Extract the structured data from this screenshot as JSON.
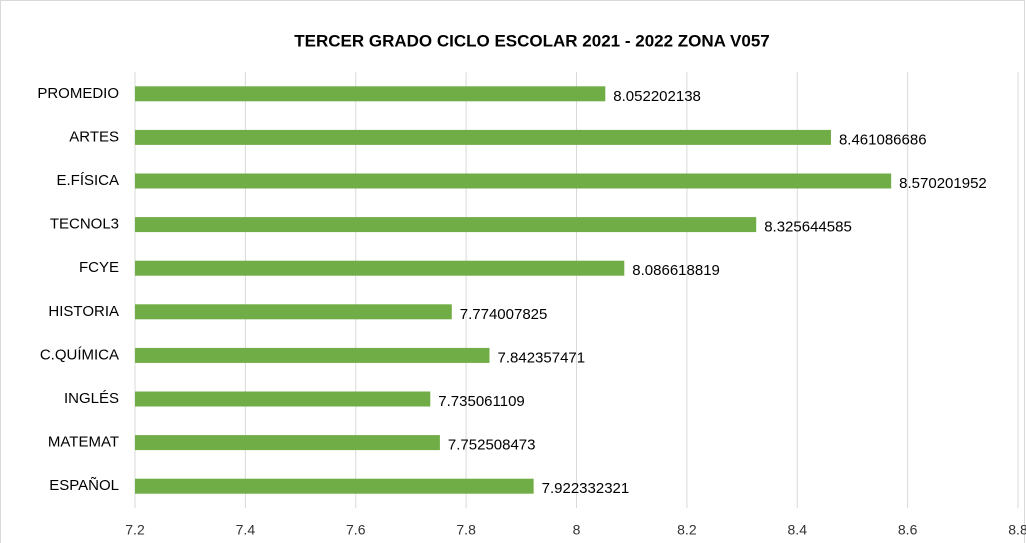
{
  "chart_data": {
    "type": "bar",
    "orientation": "horizontal",
    "title": "TERCER GRADO CICLO ESCOLAR 2021 - 2022 ZONA V057",
    "categories": [
      "PROMEDIO",
      "ARTES",
      "E.FÍSICA",
      "TECNOL3",
      "FCYE",
      "HISTORIA",
      "C.QUÍMICA",
      "INGLÉS",
      "MATEMAT",
      "ESPAÑOL"
    ],
    "values": [
      8.052202138,
      8.461086686,
      8.570201952,
      8.325644585,
      8.086618819,
      7.774007825,
      7.842357471,
      7.735061109,
      7.752508473,
      7.922332321
    ],
    "color": "#70ad47",
    "xlim": [
      7.2,
      8.8
    ],
    "xticks": [
      7.2,
      7.4,
      7.6,
      7.8,
      8,
      8.2,
      8.4,
      8.6,
      8.8
    ],
    "grid": true
  }
}
